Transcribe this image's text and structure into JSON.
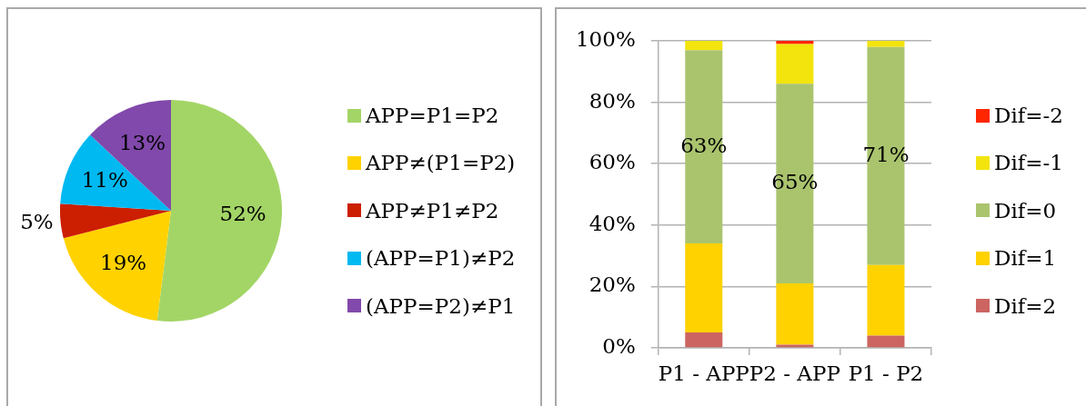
{
  "chart_data": [
    {
      "type": "pie",
      "categories": [
        "APP=P1=P2",
        "APP≠(P1=P2)",
        "APP≠P1≠P2",
        "(APP=P1)≠P2",
        "(APP=P2)≠P1"
      ],
      "values": [
        52,
        19,
        5,
        11,
        13
      ],
      "colors": [
        "#a3d566",
        "#ffd200",
        "#cc1e00",
        "#00b9f1",
        "#8149ab"
      ],
      "value_labels": [
        "52%",
        "19%",
        "5%",
        "11%",
        "13%"
      ],
      "legend": "right"
    },
    {
      "type": "bar",
      "stacked": true,
      "categories": [
        "P1 - APP",
        "P2 - APP",
        "P1 - P2"
      ],
      "series": [
        {
          "name": "Dif=2",
          "color": "#cc6561",
          "values": [
            5,
            1,
            4
          ]
        },
        {
          "name": "Dif=1",
          "color": "#ffd200",
          "values": [
            29,
            20,
            23
          ]
        },
        {
          "name": "Dif=0",
          "color": "#aac46e",
          "values": [
            63,
            65,
            71
          ],
          "value_labels": [
            "63%",
            "65%",
            "71%"
          ]
        },
        {
          "name": "Dif=-1",
          "color": "#f2e40c",
          "values": [
            3,
            13,
            2
          ]
        },
        {
          "name": "Dif=-2",
          "color": "#ff2600",
          "values": [
            0,
            1,
            0
          ]
        }
      ],
      "ylim": [
        0,
        100
      ],
      "yticks": [
        {
          "value": 0,
          "label": "0%"
        },
        {
          "value": 20,
          "label": "20%"
        },
        {
          "value": 40,
          "label": "40%"
        },
        {
          "value": 60,
          "label": "60%"
        },
        {
          "value": 80,
          "label": "80%"
        },
        {
          "value": 100,
          "label": "100%"
        }
      ],
      "grid": "y",
      "legend": "right"
    }
  ]
}
